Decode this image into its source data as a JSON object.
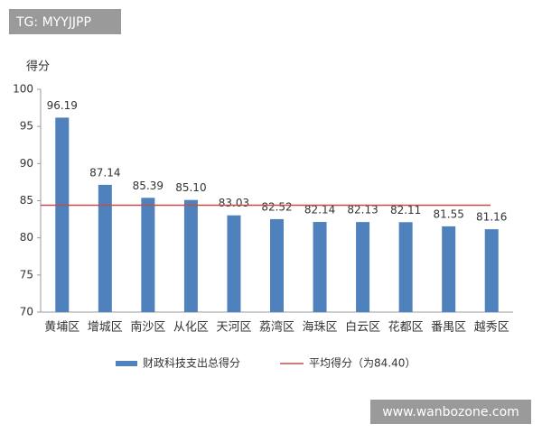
{
  "watermarks": {
    "top": "TG: MYYJJPP",
    "bottom": "www.wanbozone.com"
  },
  "chart_data": {
    "type": "bar",
    "y_label": "得分",
    "categories": [
      "黄埔区",
      "增城区",
      "南沙区",
      "从化区",
      "天河区",
      "荔湾区",
      "海珠区",
      "白云区",
      "花都区",
      "番禺区",
      "越秀区"
    ],
    "series": [
      {
        "name": "财政科技支出总得分",
        "color": "#4f81bd",
        "values": [
          96.19,
          87.14,
          85.39,
          85.1,
          83.03,
          82.52,
          82.14,
          82.13,
          82.11,
          81.55,
          81.16
        ],
        "value_labels": [
          "96.19",
          "87.14",
          "85.39",
          "85.10",
          "83.03",
          "82.52",
          "82.14",
          "82.13",
          "82.11",
          "81.55",
          "81.16"
        ]
      }
    ],
    "reference_line": {
      "name": "平均得分（为84.40）",
      "value": 84.4,
      "color": "#c0504d"
    },
    "ylim": [
      70,
      100
    ],
    "yticks": [
      70,
      75,
      80,
      85,
      90,
      95,
      100
    ],
    "grid": false
  }
}
